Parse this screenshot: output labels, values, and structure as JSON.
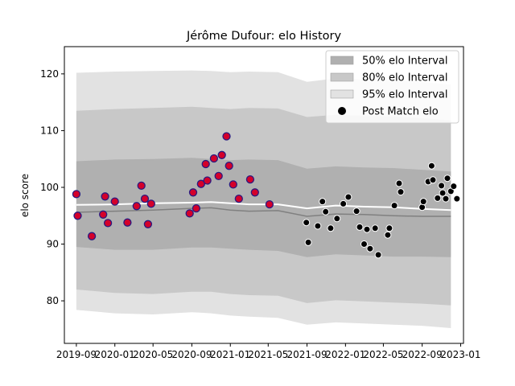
{
  "chart_data": {
    "type": "scatter",
    "title": "Jérôme Dufour: elo History",
    "xlabel": "",
    "ylabel": "elo score",
    "xlim": [
      "2019-07-25",
      "2023-01-10"
    ],
    "ylim": [
      72.5,
      124.8
    ],
    "y_ticks": [
      80,
      90,
      100,
      110,
      120
    ],
    "x_ticks": [
      {
        "date": "2019-09-01",
        "label": "2019-09"
      },
      {
        "date": "2020-01-01",
        "label": "2020-01"
      },
      {
        "date": "2020-05-01",
        "label": "2020-05"
      },
      {
        "date": "2020-09-01",
        "label": "2020-09"
      },
      {
        "date": "2021-01-01",
        "label": "2021-01"
      },
      {
        "date": "2021-05-01",
        "label": "2021-05"
      },
      {
        "date": "2021-09-01",
        "label": "2021-09"
      },
      {
        "date": "2022-01-01",
        "label": "2022-01"
      },
      {
        "date": "2022-05-01",
        "label": "2022-05"
      },
      {
        "date": "2022-09-01",
        "label": "2022-09"
      },
      {
        "date": "2023-01-01",
        "label": "2023-01"
      }
    ],
    "legend_position": "top-right",
    "legend": [
      {
        "label": "50% elo Interval",
        "kind": "band",
        "color": "#b0b0b0"
      },
      {
        "label": "80% elo Interval",
        "kind": "band",
        "color": "#c8c8c8"
      },
      {
        "label": "95% elo Interval",
        "kind": "band",
        "color": "#e2e2e2"
      },
      {
        "label": "Post Match elo",
        "kind": "marker",
        "color": "#000000"
      }
    ],
    "colors": {
      "band50": "#b0b0b0",
      "band80": "#c8c8c8",
      "band95": "#e2e2e2",
      "mean_line": "#ffffff",
      "median_line": "#808080",
      "highlight_fill": "#d4002a",
      "highlight_edge": "#2a1a80",
      "marker_fill": "#000000",
      "marker_edge": "#ffffff"
    },
    "bands": {
      "dates": [
        "2019-09-01",
        "2020-01-01",
        "2020-05-01",
        "2020-09-01",
        "2020-11-01",
        "2021-01-01",
        "2021-03-01",
        "2021-06-01",
        "2021-09-01",
        "2021-12-01",
        "2022-03-01",
        "2022-06-01",
        "2022-09-01",
        "2022-12-01"
      ],
      "p95_upper": [
        120.2,
        120.4,
        120.5,
        120.6,
        120.5,
        120.3,
        120.4,
        120.3,
        118.6,
        119.2,
        119.0,
        118.9,
        118.6,
        118.1
      ],
      "p80_upper": [
        113.5,
        113.8,
        114.0,
        114.2,
        114.0,
        113.8,
        114.0,
        113.9,
        112.4,
        112.8,
        112.6,
        112.5,
        112.2,
        111.8
      ],
      "p50_upper": [
        104.6,
        104.9,
        105.0,
        105.2,
        105.0,
        104.8,
        104.9,
        104.8,
        103.3,
        103.7,
        103.5,
        103.4,
        103.1,
        102.8
      ],
      "mean": [
        96.9,
        97.0,
        97.2,
        97.3,
        97.4,
        97.2,
        97.0,
        97.0,
        96.3,
        96.8,
        96.6,
        96.5,
        96.2,
        96.0
      ],
      "median": [
        95.6,
        95.8,
        96.0,
        96.3,
        96.4,
        96.0,
        95.8,
        95.9,
        94.9,
        95.3,
        95.2,
        95.0,
        94.9,
        94.9
      ],
      "p50_lower": [
        89.5,
        89.0,
        89.0,
        89.4,
        89.4,
        89.2,
        89.0,
        88.8,
        87.7,
        88.2,
        88.0,
        87.8,
        87.8,
        87.7
      ],
      "p80_lower": [
        82.0,
        81.4,
        81.2,
        81.6,
        81.6,
        81.2,
        81.0,
        80.9,
        79.6,
        80.1,
        79.9,
        79.7,
        79.5,
        79.2
      ],
      "p95_lower": [
        78.4,
        77.8,
        77.6,
        78.0,
        77.8,
        77.4,
        77.2,
        77.0,
        75.8,
        76.2,
        76.0,
        75.8,
        75.6,
        75.2
      ]
    },
    "series": [
      {
        "style": "highlighted",
        "points": [
          {
            "x": "2019-09-01",
            "y": 98.8
          },
          {
            "x": "2019-09-05",
            "y": 95.0
          },
          {
            "x": "2019-10-20",
            "y": 91.4
          },
          {
            "x": "2019-11-25",
            "y": 95.2
          },
          {
            "x": "2019-12-01",
            "y": 98.4
          },
          {
            "x": "2019-12-10",
            "y": 93.7
          },
          {
            "x": "2020-01-01",
            "y": 97.5
          },
          {
            "x": "2020-02-10",
            "y": 93.8
          },
          {
            "x": "2020-03-10",
            "y": 96.7
          },
          {
            "x": "2020-03-25",
            "y": 100.3
          },
          {
            "x": "2020-04-05",
            "y": 98.0
          },
          {
            "x": "2020-04-15",
            "y": 93.5
          },
          {
            "x": "2020-04-25",
            "y": 97.1
          },
          {
            "x": "2020-08-25",
            "y": 95.4
          },
          {
            "x": "2020-09-05",
            "y": 99.1
          },
          {
            "x": "2020-09-15",
            "y": 96.3
          },
          {
            "x": "2020-09-30",
            "y": 100.6
          },
          {
            "x": "2020-10-15",
            "y": 104.1
          },
          {
            "x": "2020-10-20",
            "y": 101.2
          },
          {
            "x": "2020-11-10",
            "y": 105.1
          },
          {
            "x": "2020-11-25",
            "y": 102.0
          },
          {
            "x": "2020-12-05",
            "y": 105.7
          },
          {
            "x": "2020-12-20",
            "y": 109.0
          },
          {
            "x": "2020-12-28",
            "y": 103.8
          },
          {
            "x": "2021-01-10",
            "y": 100.5
          },
          {
            "x": "2021-01-28",
            "y": 98.0
          },
          {
            "x": "2021-03-05",
            "y": 101.4
          },
          {
            "x": "2021-03-20",
            "y": 99.1
          },
          {
            "x": "2021-05-05",
            "y": 97.0
          }
        ]
      },
      {
        "style": "normal",
        "points": [
          {
            "x": "2021-08-30",
            "y": 93.8
          },
          {
            "x": "2021-09-05",
            "y": 90.3
          },
          {
            "x": "2021-10-05",
            "y": 93.2
          },
          {
            "x": "2021-10-20",
            "y": 97.5
          },
          {
            "x": "2021-10-30",
            "y": 95.7
          },
          {
            "x": "2021-11-15",
            "y": 92.8
          },
          {
            "x": "2021-12-05",
            "y": 94.5
          },
          {
            "x": "2021-12-25",
            "y": 97.1
          },
          {
            "x": "2022-01-10",
            "y": 98.3
          },
          {
            "x": "2022-02-05",
            "y": 95.8
          },
          {
            "x": "2022-02-15",
            "y": 93.0
          },
          {
            "x": "2022-03-01",
            "y": 90.0
          },
          {
            "x": "2022-03-10",
            "y": 92.6
          },
          {
            "x": "2022-03-20",
            "y": 89.2
          },
          {
            "x": "2022-04-05",
            "y": 92.8
          },
          {
            "x": "2022-04-15",
            "y": 88.1
          },
          {
            "x": "2022-05-15",
            "y": 91.6
          },
          {
            "x": "2022-05-20",
            "y": 92.8
          },
          {
            "x": "2022-06-05",
            "y": 96.8
          },
          {
            "x": "2022-06-20",
            "y": 100.7
          },
          {
            "x": "2022-06-25",
            "y": 99.2
          },
          {
            "x": "2022-09-01",
            "y": 96.5
          },
          {
            "x": "2022-09-05",
            "y": 97.5
          },
          {
            "x": "2022-09-20",
            "y": 101.0
          },
          {
            "x": "2022-10-01",
            "y": 103.8
          },
          {
            "x": "2022-10-05",
            "y": 101.3
          },
          {
            "x": "2022-10-20",
            "y": 98.1
          },
          {
            "x": "2022-11-01",
            "y": 100.3
          },
          {
            "x": "2022-11-05",
            "y": 99.0
          },
          {
            "x": "2022-11-15",
            "y": 98.0
          },
          {
            "x": "2022-11-20",
            "y": 101.6
          },
          {
            "x": "2022-12-01",
            "y": 99.3
          },
          {
            "x": "2022-12-10",
            "y": 100.2
          },
          {
            "x": "2022-12-20",
            "y": 98.0
          }
        ]
      }
    ]
  }
}
